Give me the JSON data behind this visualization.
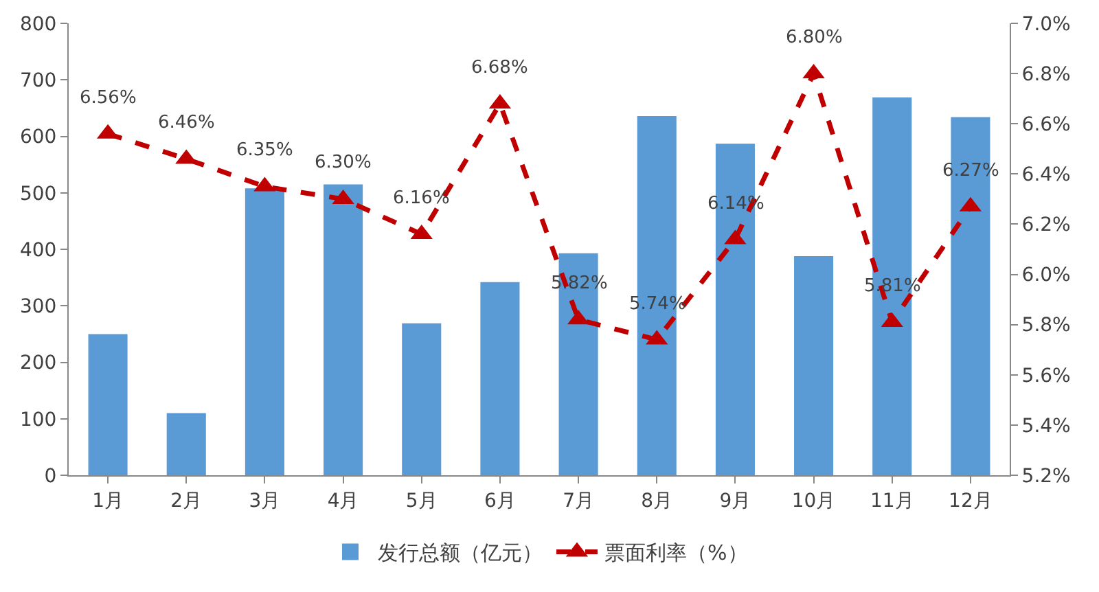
{
  "chart_data": {
    "type": "bar",
    "categories": [
      "1月",
      "2月",
      "3月",
      "4月",
      "5月",
      "6月",
      "7月",
      "8月",
      "9月",
      "10月",
      "11月",
      "12月"
    ],
    "series": [
      {
        "name": "发行总额（亿元）",
        "color": "#5b9bd5",
        "values": [
          250,
          110,
          508,
          515,
          269,
          342,
          393,
          636,
          587,
          388,
          669,
          634
        ]
      },
      {
        "name": "票面利率（%）",
        "type": "line",
        "axis": "y2",
        "color": "#c00000",
        "marker": "triangle",
        "line_style": "dashed",
        "values": [
          6.56,
          6.46,
          6.35,
          6.3,
          6.16,
          6.68,
          5.82,
          5.74,
          6.14,
          6.8,
          5.81,
          6.27
        ],
        "value_labels": [
          "6.56%",
          "6.46%",
          "6.35%",
          "6.30%",
          "6.16%",
          "6.68%",
          "5.82%",
          "5.74%",
          "6.14%",
          "6.80%",
          "5.81%",
          "6.27%"
        ]
      }
    ],
    "ylim": [
      0,
      800
    ],
    "yticks": [
      0,
      100,
      200,
      300,
      400,
      500,
      600,
      700,
      800
    ],
    "y2lim": [
      5.2,
      7.0
    ],
    "y2ticks": [
      {
        "value": 5.2,
        "label": "5.2%"
      },
      {
        "value": 5.4,
        "label": "5.4%"
      },
      {
        "value": 5.6,
        "label": "5.6%"
      },
      {
        "value": 5.8,
        "label": "5.8%"
      },
      {
        "value": 6.0,
        "label": "6.0%"
      },
      {
        "value": 6.2,
        "label": "6.2%"
      },
      {
        "value": 6.4,
        "label": "6.4%"
      },
      {
        "value": 6.6,
        "label": "6.6%"
      },
      {
        "value": 6.8,
        "label": "6.8%"
      },
      {
        "value": 7.0,
        "label": "7.0%"
      }
    ],
    "grid": false,
    "legend": "bottom"
  }
}
